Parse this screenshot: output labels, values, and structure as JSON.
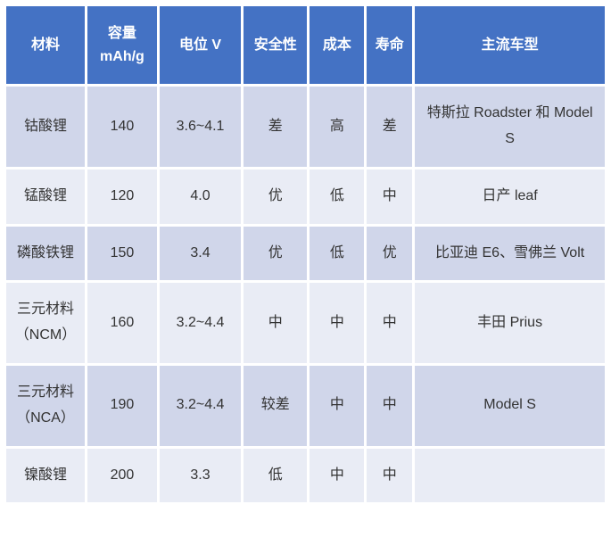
{
  "table": {
    "header_bg": "#4472c4",
    "header_fg": "#ffffff",
    "row_bg_odd": "#d0d6ea",
    "row_bg_even": "#e9ecf5",
    "cell_fg": "#333333",
    "border_color": "#ffffff",
    "font_family": "Microsoft YaHei",
    "header_fontsize": 16,
    "cell_fontsize": 16,
    "columns": [
      {
        "key": "material",
        "label": "材料",
        "width_pct": 13.5
      },
      {
        "key": "capacity",
        "label": "容量 mAh/g",
        "width_pct": 12
      },
      {
        "key": "voltage",
        "label": "电位 V",
        "width_pct": 14
      },
      {
        "key": "safety",
        "label": "安全性",
        "width_pct": 11
      },
      {
        "key": "cost",
        "label": "成本",
        "width_pct": 9.5
      },
      {
        "key": "life",
        "label": "寿命",
        "width_pct": 8
      },
      {
        "key": "vehicle",
        "label": "主流车型",
        "width_pct": 32
      }
    ],
    "rows": [
      {
        "material": "钴酸锂",
        "capacity": "140",
        "voltage": "3.6~4.1",
        "safety": "差",
        "cost": "高",
        "life": "差",
        "vehicle": "特斯拉 Roadster 和 Model S"
      },
      {
        "material": "锰酸锂",
        "capacity": "120",
        "voltage": "4.0",
        "safety": "优",
        "cost": "低",
        "life": "中",
        "vehicle": "日产 leaf"
      },
      {
        "material": "磷酸铁锂",
        "capacity": "150",
        "voltage": "3.4",
        "safety": "优",
        "cost": "低",
        "life": "优",
        "vehicle": "比亚迪 E6、雪佛兰 Volt"
      },
      {
        "material": "三元材料（NCM）",
        "capacity": "160",
        "voltage": "3.2~4.4",
        "safety": "中",
        "cost": "中",
        "life": "中",
        "vehicle": "丰田 Prius"
      },
      {
        "material": "三元材料（NCA）",
        "capacity": "190",
        "voltage": "3.2~4.4",
        "safety": "较差",
        "cost": "中",
        "life": "中",
        "vehicle": "Model S"
      },
      {
        "material": "镍酸锂",
        "capacity": "200",
        "voltage": "3.3",
        "safety": "低",
        "cost": "中",
        "life": "中",
        "vehicle": ""
      }
    ]
  }
}
